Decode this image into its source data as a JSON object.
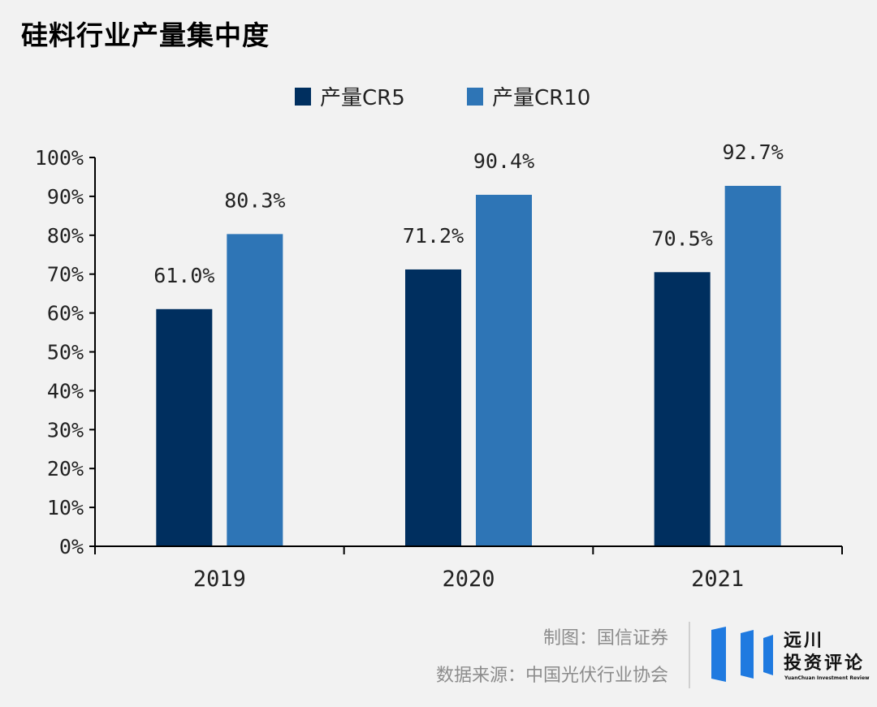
{
  "title": "硅料行业产量集中度",
  "chart_data": {
    "type": "bar",
    "categories": [
      "2019",
      "2020",
      "2021"
    ],
    "series": [
      {
        "name": "产量CR5",
        "values": [
          61.0,
          71.2,
          70.5
        ],
        "labels": [
          "61.0%",
          "71.2%",
          "70.5%"
        ],
        "color": "#002f5f"
      },
      {
        "name": "产量CR10",
        "values": [
          80.3,
          90.4,
          92.7
        ],
        "labels": [
          "80.3%",
          "90.4%",
          "92.7%"
        ],
        "color": "#2e75b6"
      }
    ],
    "ylim": [
      0,
      100
    ],
    "yticks": [
      "0%",
      "10%",
      "20%",
      "30%",
      "40%",
      "50%",
      "60%",
      "70%",
      "80%",
      "90%",
      "100%"
    ],
    "legend_position": "top-center",
    "grid": false
  },
  "footer": {
    "credit": "制图：国信证券",
    "source": "数据来源：中国光伏行业协会"
  },
  "logo": {
    "name_line1": "远川",
    "name_line2": "投资评论",
    "english": "YuanChuan Investment Review",
    "color": "#1f7ae0"
  }
}
